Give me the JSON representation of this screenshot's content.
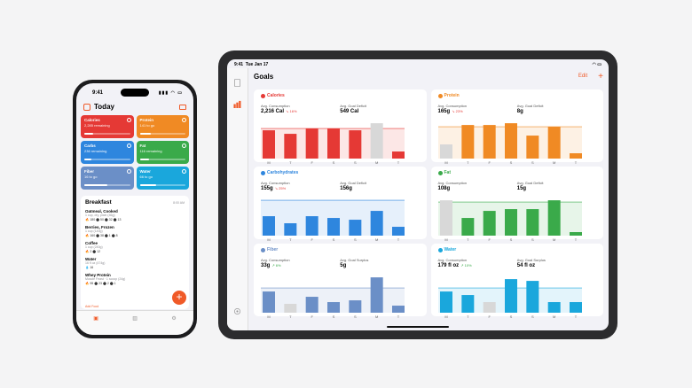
{
  "phone": {
    "time": "9:41",
    "title": "Today",
    "tiles": [
      {
        "name": "Calories",
        "sub": "2,285 remaining",
        "color": "#e53935",
        "fill": 0.2
      },
      {
        "name": "Protein",
        "sub": "141 to go",
        "color": "#f08a24",
        "fill": 0.25
      },
      {
        "name": "Carbs",
        "sub": "236 remaining",
        "color": "#2e86de",
        "fill": 0.15
      },
      {
        "name": "Fat",
        "sub": "116 remaining",
        "color": "#3aaa4a",
        "fill": 0.2
      },
      {
        "name": "Fiber",
        "sub": "16 to go",
        "color": "#6b8fc7",
        "fill": 0.5
      },
      {
        "name": "Water",
        "sub": "66 to go",
        "color": "#1aa7dc",
        "fill": 0.35
      }
    ],
    "meal": {
      "title": "Breakfast",
      "meta": "8:00 AM",
      "foods": [
        {
          "name": "Oatmeal, Cooked",
          "sub": "1 cup, dry, plain (46g)",
          "macros": "🔥 180  ⬤ 50  ⬤ 32  ⬤ 13"
        },
        {
          "name": "Berries, Frozen",
          "sub": "1 cup (140g)",
          "macros": "🔥 160  ⬤ 38  ⬤ 1  ⬤ 8"
        },
        {
          "name": "Coffee",
          "sub": "1 cup (240g)",
          "macros": "🔥 2  ⬤ 12"
        },
        {
          "name": "Water",
          "sub": "16 fl oz (474g)",
          "macros": "💧 16"
        },
        {
          "name": "Whey Protein",
          "sub": "Muscle Feast · 1 scoop (24g)",
          "macros": "🔥 95  ⬤ 23  ⬤ 2  ⬤ 1"
        }
      ]
    },
    "add_food": "Add Food"
  },
  "ipad": {
    "time": "9:41",
    "date": "Tue Jan 17",
    "title": "Goals",
    "edit": "Edit",
    "plus": "+",
    "cards": [
      {
        "name": "Calories",
        "color": "#e53935",
        "l1": "Avg. Consumption",
        "v1": "2,216 Cal",
        "d1": "↘ 16%",
        "l2": "Avg. Goal Deficit",
        "v2": "549 Cal",
        "values": [
          0.8,
          0.7,
          0.85,
          0.85,
          0.8,
          1.0,
          0.2
        ],
        "goal": 0.85,
        "grayIdx": 5
      },
      {
        "name": "Protein",
        "color": "#f08a24",
        "l1": "Avg. Consumption",
        "v1": "165g",
        "d1": "↘ 23%",
        "l2": "Avg. Goal Deficit",
        "v2": "8g",
        "values": [
          0.4,
          0.95,
          0.95,
          1.0,
          0.65,
          0.9,
          0.15
        ],
        "goal": 0.9,
        "grayIdx": 0
      },
      {
        "name": "Carbohydrates",
        "color": "#2e86de",
        "l1": "Avg. Consumption",
        "v1": "155g",
        "d1": "↘ 25%",
        "l2": "Avg. Goal Deficit",
        "v2": "156g",
        "values": [
          0.55,
          0.35,
          0.55,
          0.5,
          0.45,
          0.7,
          0.25
        ],
        "goal": 1.0,
        "grayIdx": -1
      },
      {
        "name": "Fat",
        "color": "#3aaa4a",
        "l1": "Avg. Consumption",
        "v1": "108g",
        "d1": "",
        "l2": "Avg. Goal Deficit",
        "v2": "15g",
        "values": [
          1.0,
          0.5,
          0.7,
          0.75,
          0.75,
          1.0,
          0.1
        ],
        "goal": 0.95,
        "grayIdx": 0
      },
      {
        "name": "Fiber",
        "color": "#6b8fc7",
        "l1": "Avg. Consumption",
        "v1": "33g",
        "d1": "↗ 6%",
        "l2": "Avg. Goal Surplus",
        "v2": "5g",
        "values": [
          0.6,
          0.25,
          0.45,
          0.3,
          0.35,
          1.0,
          0.2
        ],
        "goal": 0.7,
        "grayIdx": 1
      },
      {
        "name": "Water",
        "color": "#1aa7dc",
        "l1": "Avg. Consumption",
        "v1": "179 fl oz",
        "d1": "↗ 10%",
        "l2": "Avg. Goal Surplus",
        "v2": "54 fl oz",
        "values": [
          0.6,
          0.5,
          0.3,
          0.95,
          0.9,
          0.3,
          0.3
        ],
        "goal": 0.7,
        "grayIdx": 2
      }
    ],
    "days": [
      "M",
      "T",
      "F",
      "S",
      "S",
      "M",
      "T"
    ]
  }
}
